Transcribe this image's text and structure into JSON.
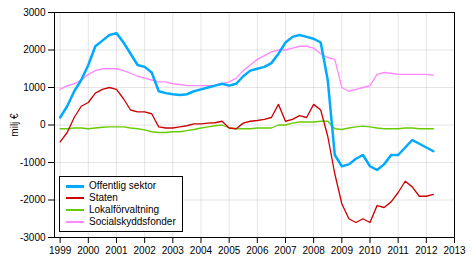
{
  "chart_data": {
    "type": "line",
    "ylabel": "milj €",
    "x": [
      1999.0,
      1999.25,
      1999.5,
      1999.75,
      2000.0,
      2000.25,
      2000.5,
      2000.75,
      2001.0,
      2001.25,
      2001.5,
      2001.75,
      2002.0,
      2002.25,
      2002.5,
      2002.75,
      2003.0,
      2003.25,
      2003.5,
      2003.75,
      2004.0,
      2004.25,
      2004.5,
      2004.75,
      2005.0,
      2005.25,
      2005.5,
      2005.75,
      2006.0,
      2006.25,
      2006.5,
      2006.75,
      2007.0,
      2007.25,
      2007.5,
      2007.75,
      2008.0,
      2008.25,
      2008.5,
      2008.75,
      2009.0,
      2009.25,
      2009.5,
      2009.75,
      2010.0,
      2010.25,
      2010.5,
      2010.75,
      2011.0,
      2011.25,
      2011.5,
      2011.75,
      2012.0,
      2012.25
    ],
    "series": [
      {
        "name": "Offentlig sektor",
        "color": "#00aaff",
        "values": [
          200,
          500,
          900,
          1200,
          1600,
          2100,
          2250,
          2400,
          2450,
          2200,
          1900,
          1600,
          1550,
          1400,
          900,
          850,
          820,
          800,
          820,
          900,
          950,
          1000,
          1050,
          1100,
          1050,
          1100,
          1300,
          1450,
          1500,
          1550,
          1650,
          1900,
          2200,
          2350,
          2400,
          2350,
          2300,
          2200,
          1200,
          -800,
          -1100,
          -1050,
          -900,
          -800,
          -1100,
          -1200,
          -1050,
          -800,
          -800,
          -600,
          -400,
          -500,
          -600,
          -700
        ]
      },
      {
        "name": "Staten",
        "color": "#cc0000",
        "values": [
          -450,
          -200,
          200,
          500,
          600,
          850,
          950,
          1000,
          950,
          700,
          400,
          350,
          350,
          300,
          -50,
          -80,
          -80,
          -50,
          -20,
          30,
          30,
          50,
          60,
          100,
          -80,
          -100,
          50,
          100,
          120,
          150,
          200,
          550,
          100,
          150,
          250,
          200,
          550,
          400,
          -300,
          -1300,
          -2100,
          -2500,
          -2600,
          -2500,
          -2600,
          -2150,
          -2200,
          -2050,
          -1800,
          -1500,
          -1650,
          -1900,
          -1900,
          -1850
        ]
      },
      {
        "name": "Lokalförvaltning",
        "color": "#66cc00",
        "values": [
          -100,
          -100,
          -80,
          -80,
          -100,
          -80,
          -60,
          -50,
          -50,
          -50,
          -80,
          -100,
          -130,
          -180,
          -200,
          -200,
          -180,
          -180,
          -150,
          -120,
          -80,
          -50,
          -20,
          0,
          -80,
          -100,
          -100,
          -100,
          -80,
          -80,
          -80,
          0,
          0,
          50,
          80,
          80,
          80,
          100,
          100,
          -100,
          -120,
          -80,
          -50,
          -30,
          -50,
          -80,
          -100,
          -100,
          -100,
          -80,
          -80,
          -100,
          -100,
          -100
        ]
      },
      {
        "name": "Socialskyddsfonder",
        "color": "#ff88ff",
        "values": [
          950,
          1050,
          1100,
          1200,
          1350,
          1450,
          1500,
          1500,
          1500,
          1450,
          1380,
          1300,
          1250,
          1200,
          1150,
          1150,
          1100,
          1080,
          1050,
          1050,
          1050,
          1050,
          1050,
          1100,
          1150,
          1250,
          1450,
          1600,
          1750,
          1850,
          1950,
          2000,
          2000,
          2050,
          2100,
          2100,
          2050,
          1900,
          1800,
          1750,
          1000,
          900,
          950,
          1000,
          1050,
          1350,
          1400,
          1380,
          1350,
          1350,
          1350,
          1350,
          1350,
          1330
        ]
      }
    ],
    "xlim": [
      1998.8,
      2013.0
    ],
    "xticks": [
      1999,
      2000,
      2001,
      2002,
      2003,
      2004,
      2005,
      2006,
      2007,
      2008,
      2009,
      2010,
      2011,
      2012,
      2013
    ],
    "ylim": [
      -3000,
      3000
    ],
    "yticks": [
      -3000,
      -2000,
      -1000,
      0,
      1000,
      2000,
      3000
    ],
    "grid": true,
    "legend": "lower left"
  }
}
